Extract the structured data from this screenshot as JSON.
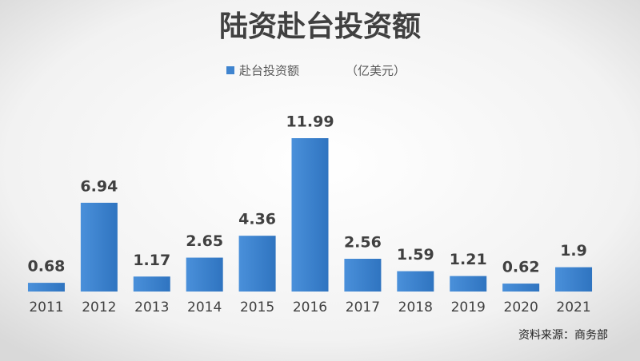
{
  "chart_data": {
    "type": "bar",
    "title": "陆资赴台投资额",
    "unit": "（亿美元）",
    "source": "资料来源：商务部",
    "categories": [
      "2011",
      "2012",
      "2013",
      "2014",
      "2015",
      "2016",
      "2017",
      "2018",
      "2019",
      "2020",
      "2021"
    ],
    "series": [
      {
        "name": "赴台投资额",
        "color": "#3f84cf",
        "values": [
          0.68,
          6.94,
          1.17,
          2.65,
          4.36,
          11.99,
          2.56,
          1.59,
          1.21,
          0.62,
          1.9
        ]
      }
    ]
  }
}
